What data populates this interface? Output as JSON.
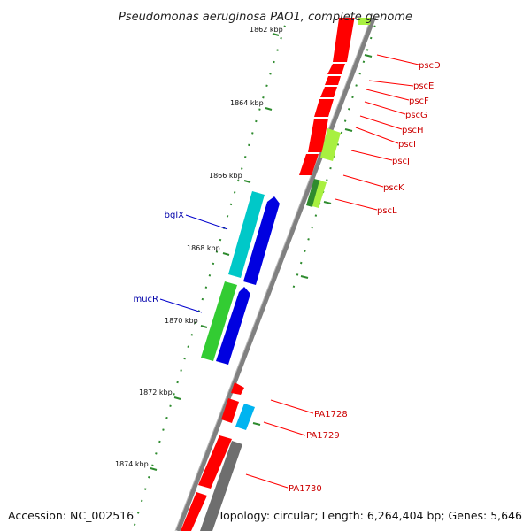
{
  "title": "Pseudomonas aeruginosa PAO1, complete genome",
  "footer": {
    "accession": "Accession: NC_002516",
    "summary": "Topology: circular; Length: 6,264,404 bp; Genes: 5,646"
  },
  "ticks": [
    "1862 kbp",
    "1864 kbp",
    "1866 kbp",
    "1868 kbp",
    "1870 kbp",
    "1872 kbp",
    "1874 kbp"
  ],
  "labels": {
    "pscD": "pscD",
    "pscE": "pscE",
    "pscF": "pscF",
    "pscG": "pscG",
    "pscH": "pscH",
    "pscI": "pscI",
    "pscJ": "pscJ",
    "pscK": "pscK",
    "pscL": "pscL",
    "bglX": "bglX",
    "mucR": "mucR",
    "PA1728": "PA1728",
    "PA1729": "PA1729",
    "PA1730": "PA1730"
  },
  "colors": {
    "backbone": "#808080",
    "tick": "#2e8b2e",
    "red_gene": "#ff0000",
    "cyan_gene": "#00c8c8",
    "blue_gene": "#0000e0",
    "green_gene": "#33cc33",
    "lime_gene": "#a8f040",
    "sky_gene": "#00b4f0",
    "gray_gene": "#6e6e6e",
    "red_label": "#cc0000",
    "blue_label": "#0000aa"
  }
}
